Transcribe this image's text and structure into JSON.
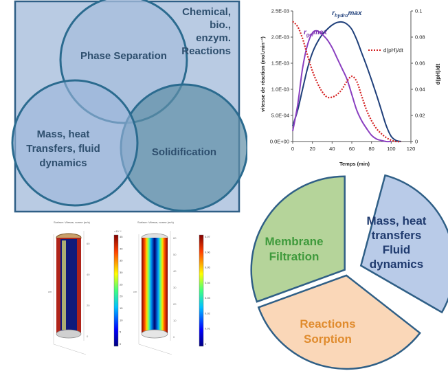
{
  "venn": {
    "circle_top_label": "Phase Separation",
    "circle_left_label_lines": [
      "Mass, heat",
      "Transfers, fluid",
      "dynamics"
    ],
    "circle_right_label": "Solidification",
    "corner_label_lines": [
      "Chemical,",
      "bio.,",
      "enzym.",
      "Reactions"
    ],
    "colors": {
      "panel_bg": "#b9cbe3",
      "panel_border": "#2f5f86",
      "circle_stroke": "#2b6b8f",
      "text": "#2e4f6e"
    }
  },
  "chart_data": {
    "type": "line",
    "xlabel": "Temps (min)",
    "ylabel": "vitesse de réaction (mol.min⁻¹)",
    "ylabel_right": "d(pH)/dt",
    "xlim": [
      0,
      120
    ],
    "ylim": [
      0,
      0.0025
    ],
    "ylim_right": [
      0,
      0.1
    ],
    "x_ticks": [
      "0",
      "20",
      "40",
      "60",
      "80",
      "100",
      "120"
    ],
    "y_ticks": [
      "0.0E+00",
      "5.0E-04",
      "1.0E-03",
      "1.5E-03",
      "2.0E-03",
      "2.5E-03"
    ],
    "y_right_ticks": [
      "0",
      "0.02",
      "0.04",
      "0.06",
      "0.08",
      "0.1"
    ],
    "grid": false,
    "legend": "right",
    "annotations": [
      {
        "text_base": "r",
        "text_sub": "hydro",
        "text_tail": "max",
        "color": "#1f3f7a",
        "x": 55,
        "y": 0.00242
      },
      {
        "text_base": "r",
        "text_sub": "gel",
        "text_tail": "max",
        "color": "#7a2fb0",
        "x": 23,
        "y": 0.00205
      }
    ],
    "series": [
      {
        "color": "#1f3f7a",
        "axis": "left",
        "x": [
          0,
          5,
          10,
          15,
          20,
          25,
          30,
          35,
          40,
          45,
          50,
          55,
          60,
          65,
          70,
          75,
          80,
          85,
          90,
          95,
          100,
          105,
          110
        ],
        "y": [
          0.0003,
          0.0006,
          0.001,
          0.0014,
          0.0017,
          0.0019,
          0.00205,
          0.00215,
          0.00223,
          0.00228,
          0.00229,
          0.00225,
          0.00215,
          0.00195,
          0.0017,
          0.00145,
          0.00118,
          0.0009,
          0.0006,
          0.0003,
          0.0001,
          2e-05,
          0
        ]
      },
      {
        "color": "#8a3fc0",
        "axis": "left",
        "x": [
          0,
          5,
          10,
          15,
          20,
          25,
          30,
          35,
          40,
          45,
          50,
          55,
          60,
          65,
          70,
          75,
          80,
          85,
          90,
          95,
          100
        ],
        "y": [
          0.0002,
          0.0007,
          0.0014,
          0.00185,
          0.00208,
          0.00212,
          0.00205,
          0.00195,
          0.0018,
          0.0016,
          0.0014,
          0.0012,
          0.0009,
          0.0006,
          0.0004,
          0.00025,
          0.00012,
          5e-05,
          2e-05,
          0,
          0
        ]
      },
      {
        "name": "d(pH)/dt",
        "color": "#d42020",
        "axis": "right",
        "dashed": true,
        "x": [
          0,
          5,
          10,
          15,
          20,
          25,
          30,
          35,
          40,
          45,
          50,
          55,
          60,
          65,
          70,
          75,
          80,
          85,
          90,
          95,
          100,
          105,
          110
        ],
        "y": [
          0.092,
          0.088,
          0.079,
          0.066,
          0.054,
          0.045,
          0.038,
          0.034,
          0.034,
          0.036,
          0.04,
          0.046,
          0.05,
          0.046,
          0.035,
          0.024,
          0.016,
          0.01,
          0.006,
          0.003,
          0.001,
          0,
          0
        ]
      }
    ]
  },
  "pie": {
    "slice_green_label_lines": [
      "Membrane",
      "Filtration"
    ],
    "slice_blue_label_lines": [
      "Mass, heat",
      "transfers",
      "Fluid",
      "dynamics"
    ],
    "slice_orange_label_lines": [
      "Reactions",
      "Sorption"
    ],
    "colors": {
      "green_fill": "#b5d49a",
      "green_text": "#3f9a3c",
      "blue_fill": "#b9cbe8",
      "blue_text": "#1f3a6e",
      "orange_fill": "#fad7b8",
      "orange_text": "#e08b2d",
      "stroke": "#2f5f86"
    }
  },
  "simulations": {
    "title_left": "Surface: Vitesse, norme (m/s)",
    "title_right": "Surface: Vitesse, norme (m/s)",
    "scale_exp_left": "×10⁻⁴",
    "colorbar_left_ticks": [
      "45",
      "40",
      "35",
      "30",
      "25",
      "20",
      "15",
      "10",
      "5",
      "0"
    ],
    "colorbar_right_ticks": [
      "0.07",
      "0.06",
      "0.05",
      "0.04",
      "0.03",
      "0.02",
      "0.01",
      "0"
    ],
    "axis_ticks_left": [
      "60",
      "40",
      "20",
      "0"
    ],
    "axis_ticks_right": [
      "60",
      "50",
      "40",
      "30",
      "20",
      "10",
      "0"
    ],
    "unit_label": "cm"
  }
}
